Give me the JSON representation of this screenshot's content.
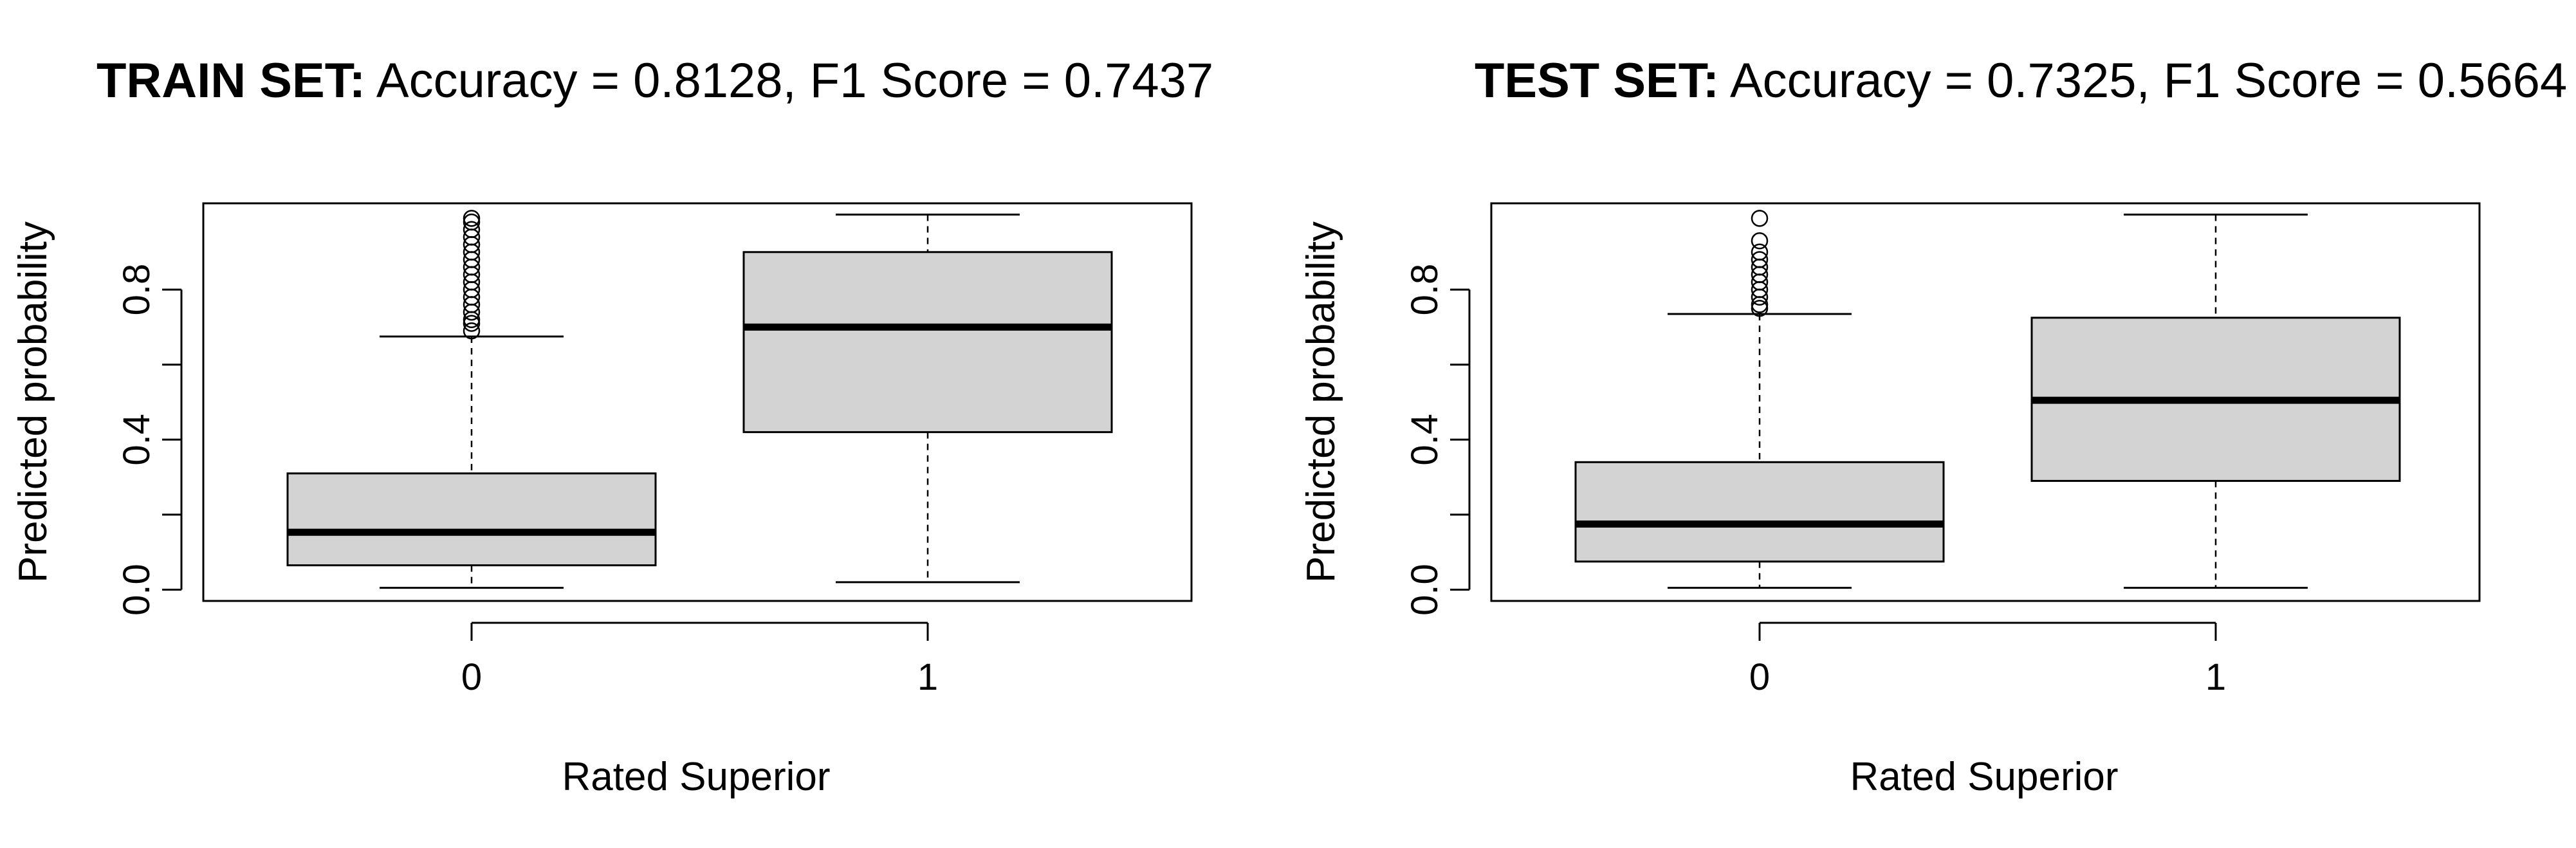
{
  "chart_data": [
    {
      "type": "boxplot",
      "title_bold": "TRAIN SET:",
      "title_rest": "Accuracy = 0.8128, F1 Score = 0.7437",
      "xlabel": "Rated Superior",
      "ylabel": "Predicted probability",
      "categories": [
        "0",
        "1"
      ],
      "yticks": [
        "0.0",
        "0.4",
        "0.8"
      ],
      "ytick_values": [
        0.0,
        0.4,
        0.8
      ],
      "ylim": [
        -0.03,
        1.03
      ],
      "grid": false,
      "box_color": "#d3d3d3",
      "boxes": [
        {
          "category": "0",
          "whisker_low": 0.005,
          "q1": 0.065,
          "median": 0.153,
          "q3": 0.31,
          "whisker_high": 0.675,
          "outliers": [
            0.69,
            0.71,
            0.72,
            0.74,
            0.76,
            0.78,
            0.8,
            0.82,
            0.84,
            0.86,
            0.88,
            0.9,
            0.92,
            0.94,
            0.96,
            0.98,
            0.99
          ]
        },
        {
          "category": "1",
          "whisker_low": 0.02,
          "q1": 0.42,
          "median": 0.7,
          "q3": 0.9,
          "whisker_high": 1.0,
          "outliers": []
        }
      ]
    },
    {
      "type": "boxplot",
      "title_bold": "TEST SET:",
      "title_rest": "Accuracy = 0.7325, F1 Score = 0.5664",
      "xlabel": "Rated Superior",
      "ylabel": "Predicted probability",
      "categories": [
        "0",
        "1"
      ],
      "yticks": [
        "0.0",
        "0.4",
        "0.8"
      ],
      "ytick_values": [
        0.0,
        0.4,
        0.8
      ],
      "ylim": [
        -0.03,
        1.03
      ],
      "grid": false,
      "box_color": "#d3d3d3",
      "boxes": [
        {
          "category": "0",
          "whisker_low": 0.005,
          "q1": 0.075,
          "median": 0.175,
          "q3": 0.34,
          "whisker_high": 0.735,
          "outliers": [
            0.75,
            0.76,
            0.78,
            0.8,
            0.82,
            0.84,
            0.86,
            0.88,
            0.9,
            0.93,
            0.99
          ]
        },
        {
          "category": "1",
          "whisker_low": 0.005,
          "q1": 0.29,
          "median": 0.505,
          "q3": 0.725,
          "whisker_high": 1.0,
          "outliers": []
        }
      ]
    }
  ]
}
